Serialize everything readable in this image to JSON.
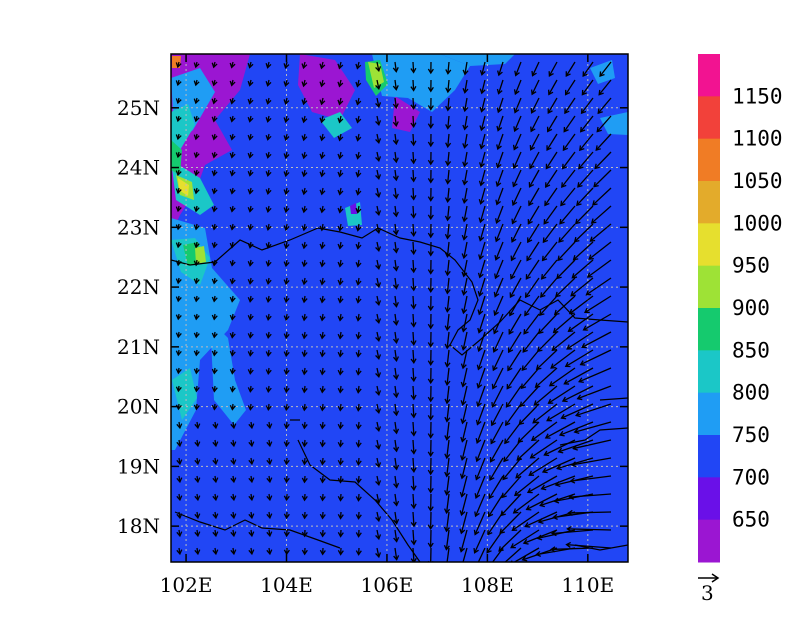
{
  "map": {
    "x_labels": [
      "102E",
      "104E",
      "106E",
      "108E",
      "110E"
    ],
    "y_labels": [
      "18N",
      "19N",
      "20N",
      "21N",
      "22N",
      "23N",
      "24N",
      "25N"
    ],
    "lon_range": [
      101.7,
      110.8
    ],
    "lat_range": [
      17.4,
      25.9
    ],
    "gridlines": true,
    "background_color": "#2146f5"
  },
  "colorbar": {
    "labels": [
      "650",
      "700",
      "750",
      "800",
      "850",
      "900",
      "950",
      "1000",
      "1050",
      "1100",
      "1150"
    ],
    "colors": [
      "#9b16d2",
      "#6a10e8",
      "#2146f5",
      "#1f9df4",
      "#1bc7c7",
      "#15ca6e",
      "#9ee236",
      "#e6df2e",
      "#e3ab2b",
      "#f07c25",
      "#f2413a",
      "#f21391"
    ]
  },
  "reference_vector": {
    "label": "3"
  }
}
